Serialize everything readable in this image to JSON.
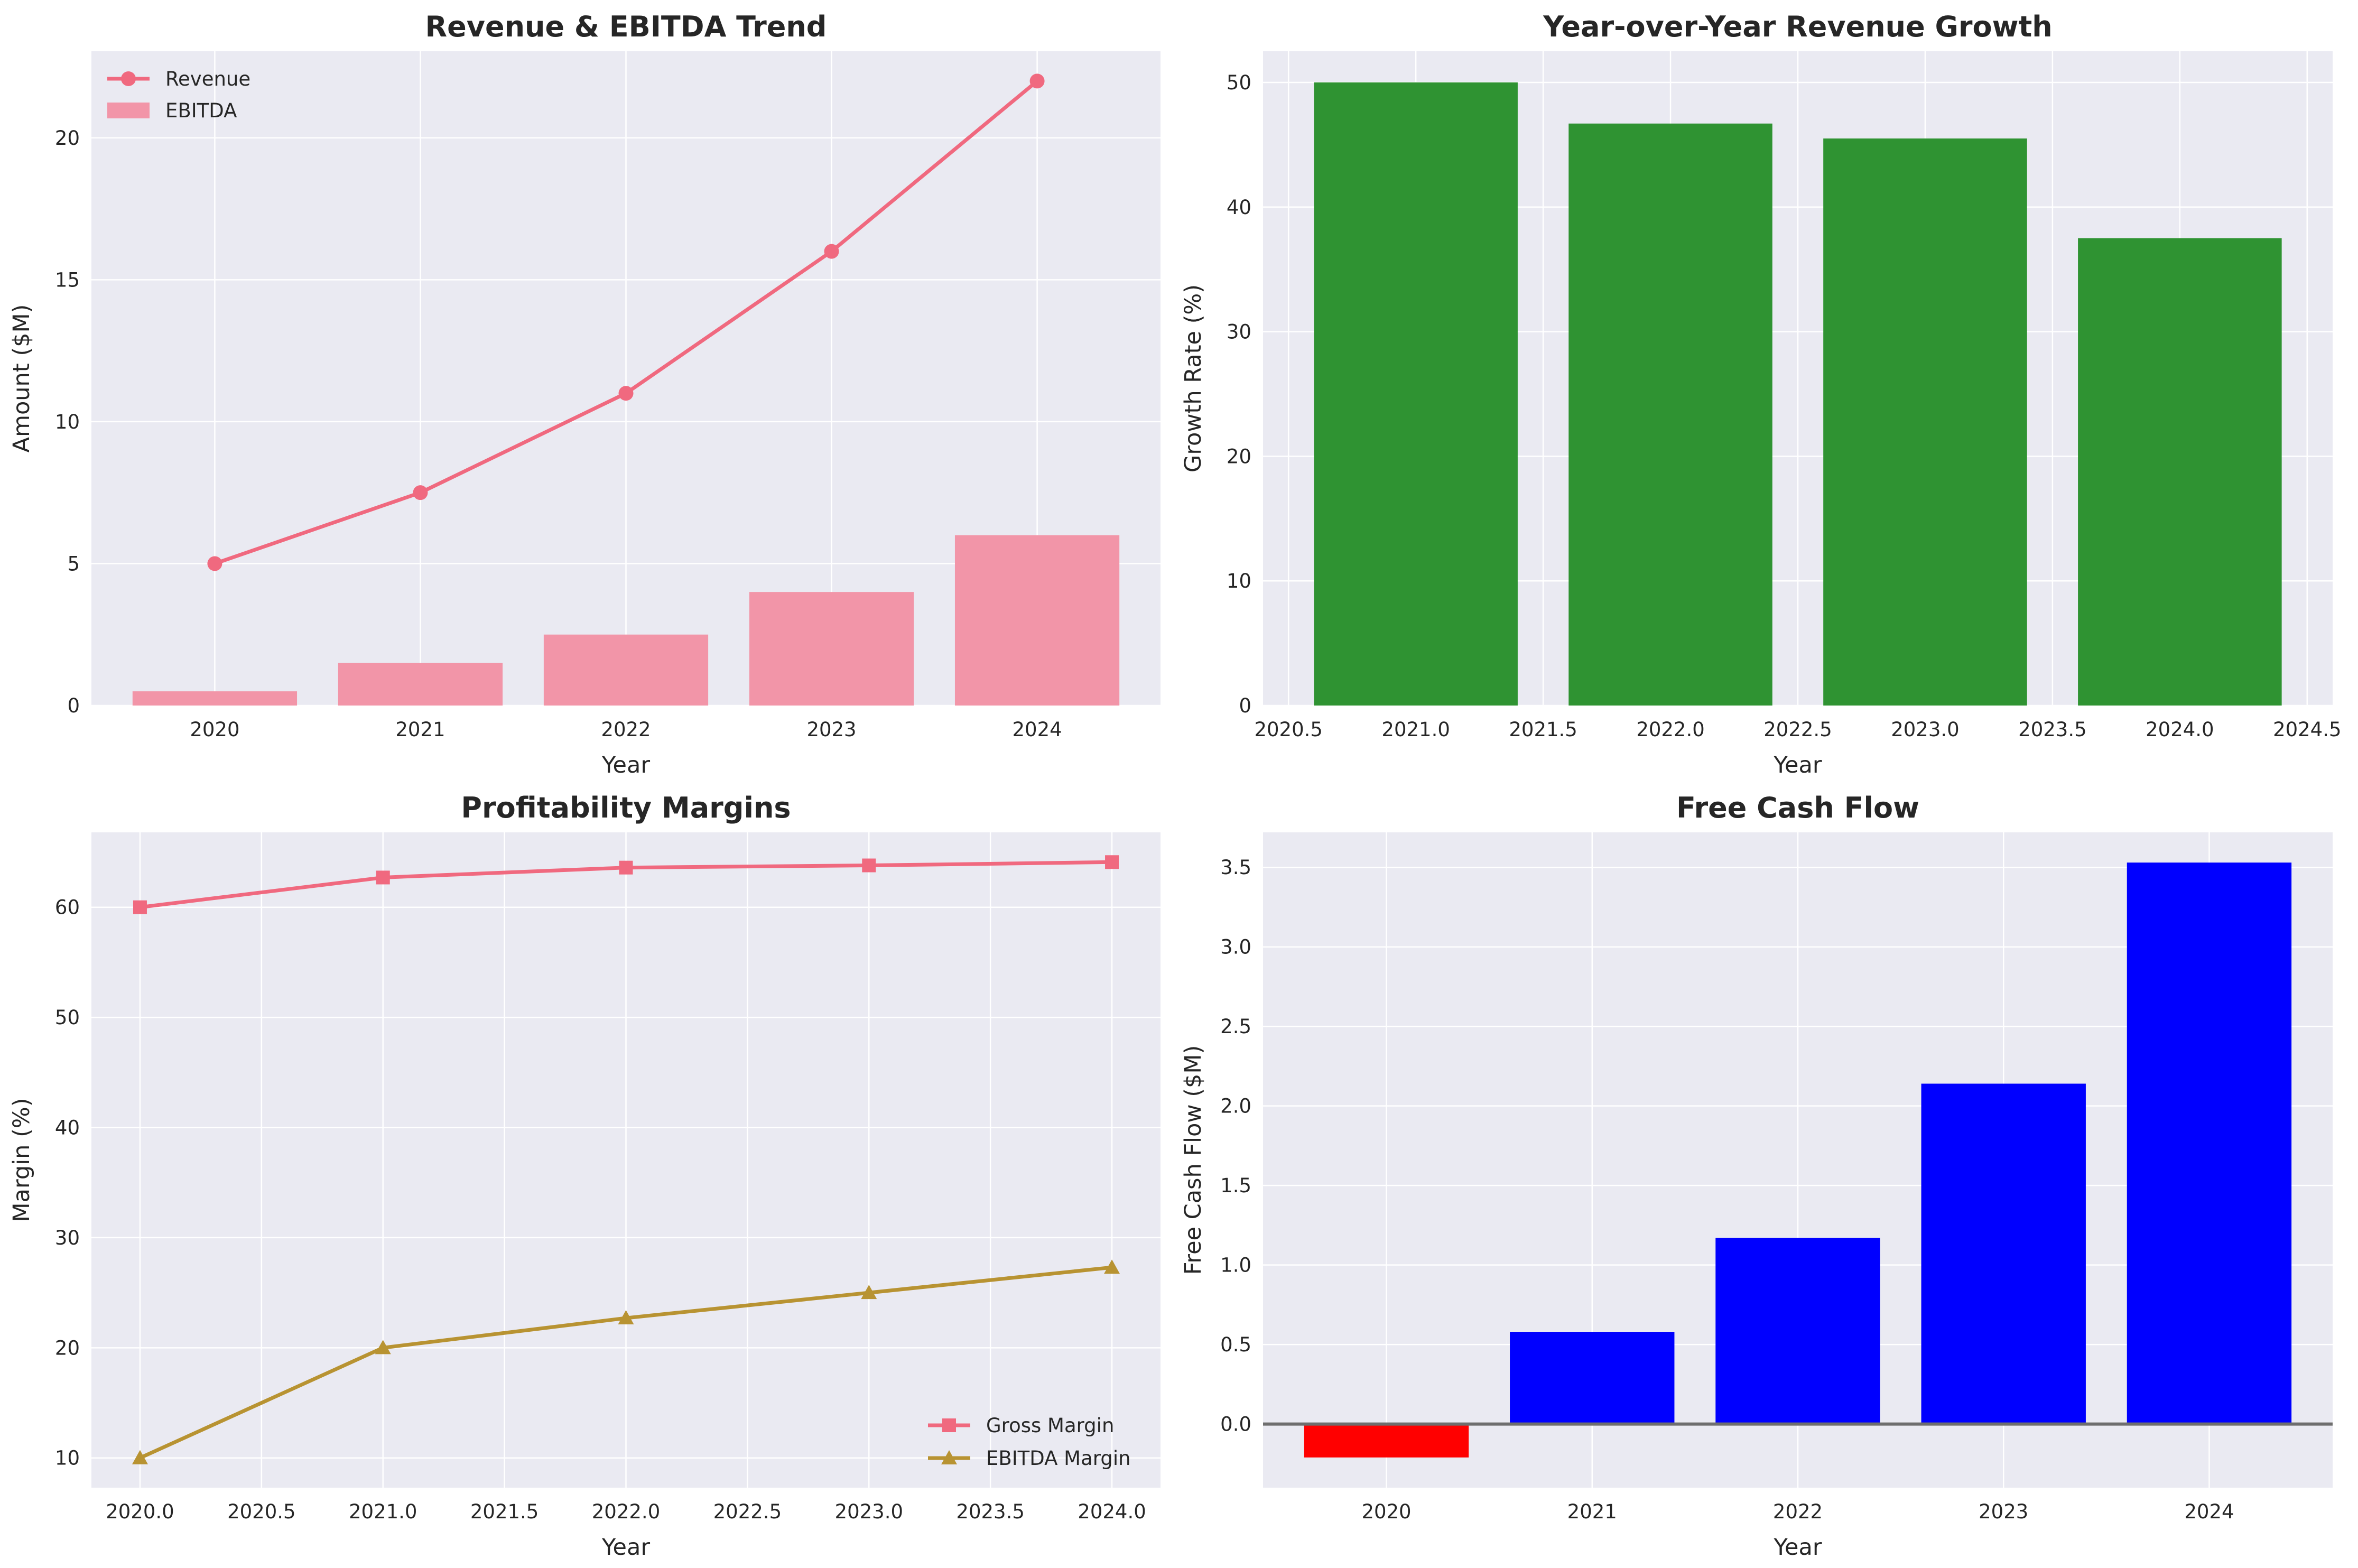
{
  "chart_data": [
    {
      "id": "rev",
      "type": "bar+line",
      "title": "Revenue & EBITDA Trend",
      "xlabel": "Year",
      "ylabel": "Amount ($M)",
      "categories": [
        "2020",
        "2021",
        "2022",
        "2023",
        "2024"
      ],
      "ylim": [
        0,
        23.05
      ],
      "yticks": [
        0,
        5,
        10,
        15,
        20
      ],
      "series": [
        {
          "name": "Revenue",
          "kind": "line",
          "marker": "circle",
          "color": "#f0697f",
          "values": [
            5,
            7.5,
            11,
            16,
            22
          ]
        },
        {
          "name": "EBITDA",
          "kind": "bar",
          "color": "#f295a8",
          "values": [
            0.5,
            1.5,
            2.5,
            4,
            6
          ]
        }
      ],
      "legend": "upper-left",
      "grid": true
    },
    {
      "id": "growth",
      "type": "bar",
      "title": "Year-over-Year Revenue Growth",
      "xlabel": "Year",
      "ylabel": "Growth Rate (%)",
      "x": [
        2021,
        2022,
        2023,
        2024
      ],
      "values": [
        50,
        46.7,
        45.5,
        37.5
      ],
      "bar_width": 0.8,
      "color": "#2f9332",
      "xlim": [
        2020.4,
        2024.6
      ],
      "ylim": [
        0,
        52.5
      ],
      "xticks": [
        "2020.5",
        "2021.0",
        "2021.5",
        "2022.0",
        "2022.5",
        "2023.0",
        "2023.5",
        "2024.0",
        "2024.5"
      ],
      "yticks": [
        0,
        10,
        20,
        30,
        40,
        50
      ],
      "grid": true
    },
    {
      "id": "margins",
      "type": "line",
      "title": "Profitability Margins",
      "xlabel": "Year",
      "ylabel": "Margin (%)",
      "x": [
        2020,
        2021,
        2022,
        2023,
        2024
      ],
      "xlim": [
        2019.8,
        2024.2
      ],
      "ylim": [
        7.3,
        66.8
      ],
      "xticks": [
        "2020.0",
        "2020.5",
        "2021.0",
        "2021.5",
        "2022.0",
        "2022.5",
        "2023.0",
        "2023.5",
        "2024.0"
      ],
      "yticks": [
        10,
        20,
        30,
        40,
        50,
        60
      ],
      "series": [
        {
          "name": "Gross Margin",
          "marker": "square",
          "color": "#f0697f",
          "values": [
            60,
            62.7,
            63.6,
            63.8,
            64.1
          ]
        },
        {
          "name": "EBITDA Margin",
          "marker": "triangle",
          "color": "#b89332",
          "values": [
            10,
            20,
            22.7,
            25,
            27.3
          ]
        }
      ],
      "legend": "lower-right",
      "grid": true
    },
    {
      "id": "fcf",
      "type": "bar",
      "title": "Free Cash Flow",
      "xlabel": "Year",
      "ylabel": "Free Cash Flow ($M)",
      "categories": [
        "2020",
        "2021",
        "2022",
        "2023",
        "2024"
      ],
      "values": [
        -0.21,
        0.58,
        1.17,
        2.14,
        3.53
      ],
      "positive_color": "#0000ff",
      "negative_color": "#ff0000",
      "ylim": [
        -0.4,
        3.72
      ],
      "yticks": [
        0.0,
        0.5,
        1.0,
        1.5,
        2.0,
        2.5,
        3.0,
        3.5
      ],
      "zero_line": true,
      "grid": true
    }
  ]
}
